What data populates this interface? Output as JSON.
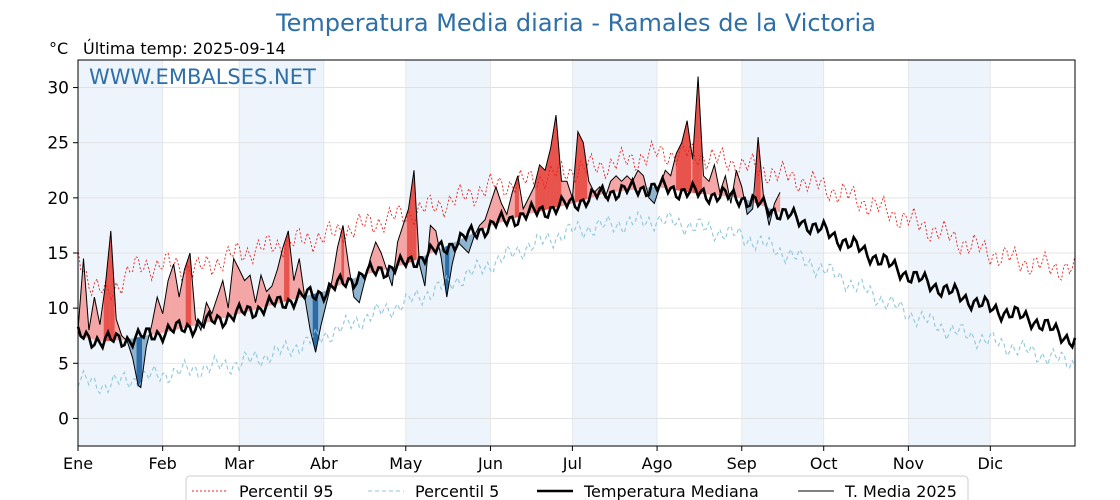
{
  "chart_data": {
    "type": "line",
    "title": "Temperatura Media diaria - Ramales de la Victoria",
    "unit_label": "°C",
    "last_temp_label": "Última temp: 2025-09-14",
    "watermark": "WWW.EMBALSES.NET",
    "ylim": [
      -2.5,
      32.5
    ],
    "yticks": [
      0,
      5,
      10,
      15,
      20,
      25,
      30
    ],
    "xlim": [
      1,
      366
    ],
    "months": [
      {
        "label": "Ene",
        "day": 1
      },
      {
        "label": "Feb",
        "day": 32
      },
      {
        "label": "Mar",
        "day": 60
      },
      {
        "label": "Abr",
        "day": 91
      },
      {
        "label": "May",
        "day": 121
      },
      {
        "label": "Jun",
        "day": 152
      },
      {
        "label": "Jul",
        "day": 182
      },
      {
        "label": "Ago",
        "day": 213
      },
      {
        "label": "Sep",
        "day": 244
      },
      {
        "label": "Oct",
        "day": 274
      },
      {
        "label": "Nov",
        "day": 305
      },
      {
        "label": "Dic",
        "day": 335
      }
    ],
    "grid": true,
    "legend_position": "bottom",
    "colors": {
      "p95": "#e8201c",
      "p5": "#8ec7db",
      "median": "#000000",
      "t2025": "#000000",
      "above_fill": "#f4a6a6",
      "above_strong": "#e8534c",
      "below_fill": "#8fb3cf",
      "below_strong": "#2a6ba8",
      "band": "#eef4fb",
      "title": "#2e6fa7"
    },
    "series": [
      {
        "name": "Percentil 95",
        "style": "dotted-red",
        "anchors": [
          [
            1,
            15.0
          ],
          [
            5,
            12.5
          ],
          [
            12,
            11.0
          ],
          [
            20,
            13.5
          ],
          [
            32,
            14.0
          ],
          [
            45,
            13.5
          ],
          [
            60,
            15.0
          ],
          [
            75,
            15.8
          ],
          [
            91,
            16.5
          ],
          [
            105,
            17.5
          ],
          [
            121,
            18.5
          ],
          [
            135,
            19.5
          ],
          [
            152,
            21.0
          ],
          [
            165,
            21.5
          ],
          [
            182,
            22.5
          ],
          [
            195,
            23.0
          ],
          [
            213,
            24.0
          ],
          [
            225,
            24.0
          ],
          [
            244,
            23.0
          ],
          [
            260,
            22.0
          ],
          [
            274,
            21.0
          ],
          [
            290,
            19.5
          ],
          [
            305,
            18.0
          ],
          [
            320,
            16.5
          ],
          [
            335,
            15.0
          ],
          [
            350,
            14.0
          ],
          [
            366,
            13.5
          ]
        ]
      },
      {
        "name": "Percentil 5",
        "style": "dashed-lightblue",
        "anchors": [
          [
            1,
            3.5
          ],
          [
            10,
            3.0
          ],
          [
            20,
            3.5
          ],
          [
            32,
            4.0
          ],
          [
            45,
            4.5
          ],
          [
            60,
            5.0
          ],
          [
            75,
            6.0
          ],
          [
            91,
            7.5
          ],
          [
            105,
            9.0
          ],
          [
            121,
            10.5
          ],
          [
            135,
            12.0
          ],
          [
            152,
            14.0
          ],
          [
            165,
            15.5
          ],
          [
            182,
            17.0
          ],
          [
            195,
            17.5
          ],
          [
            213,
            18.0
          ],
          [
            225,
            17.5
          ],
          [
            244,
            16.5
          ],
          [
            260,
            15.0
          ],
          [
            274,
            13.5
          ],
          [
            290,
            11.5
          ],
          [
            305,
            9.5
          ],
          [
            320,
            8.0
          ],
          [
            335,
            7.0
          ],
          [
            350,
            6.0
          ],
          [
            366,
            5.0
          ]
        ]
      },
      {
        "name": "Temperatura Mediana",
        "style": "thick-black",
        "anchors": [
          [
            1,
            7.5
          ],
          [
            10,
            7.0
          ],
          [
            20,
            7.2
          ],
          [
            32,
            7.8
          ],
          [
            45,
            8.5
          ],
          [
            60,
            9.5
          ],
          [
            75,
            10.5
          ],
          [
            91,
            11.5
          ],
          [
            105,
            13.0
          ],
          [
            121,
            14.0
          ],
          [
            135,
            15.5
          ],
          [
            152,
            17.5
          ],
          [
            165,
            18.5
          ],
          [
            182,
            19.5
          ],
          [
            195,
            20.5
          ],
          [
            213,
            21.0
          ],
          [
            225,
            20.5
          ],
          [
            244,
            20.0
          ],
          [
            260,
            18.5
          ],
          [
            274,
            17.0
          ],
          [
            290,
            15.0
          ],
          [
            305,
            13.0
          ],
          [
            320,
            11.5
          ],
          [
            335,
            10.0
          ],
          [
            350,
            9.0
          ],
          [
            366,
            7.0
          ]
        ]
      },
      {
        "name": "T. Media 2025",
        "style": "thin-black",
        "points": [
          [
            1,
            8.0
          ],
          [
            3,
            14.5
          ],
          [
            5,
            8.0
          ],
          [
            7,
            11.0
          ],
          [
            9,
            8.5
          ],
          [
            11,
            12.0
          ],
          [
            13,
            17.0
          ],
          [
            15,
            9.0
          ],
          [
            17,
            7.5
          ],
          [
            19,
            7.0
          ],
          [
            21,
            5.5
          ],
          [
            23,
            3.0
          ],
          [
            24,
            2.8
          ],
          [
            26,
            6.5
          ],
          [
            28,
            8.5
          ],
          [
            30,
            11.0
          ],
          [
            32,
            9.5
          ],
          [
            34,
            12.5
          ],
          [
            36,
            14.0
          ],
          [
            38,
            11.0
          ],
          [
            40,
            13.5
          ],
          [
            42,
            15.0
          ],
          [
            44,
            9.0
          ],
          [
            46,
            8.0
          ],
          [
            48,
            10.5
          ],
          [
            50,
            9.5
          ],
          [
            52,
            11.0
          ],
          [
            54,
            12.5
          ],
          [
            56,
            10.0
          ],
          [
            58,
            14.5
          ],
          [
            60,
            13.5
          ],
          [
            62,
            12.5
          ],
          [
            64,
            13.0
          ],
          [
            66,
            10.5
          ],
          [
            68,
            13.0
          ],
          [
            70,
            11.5
          ],
          [
            72,
            12.0
          ],
          [
            74,
            13.5
          ],
          [
            76,
            15.5
          ],
          [
            78,
            17.0
          ],
          [
            80,
            12.5
          ],
          [
            82,
            14.5
          ],
          [
            84,
            11.0
          ],
          [
            86,
            8.0
          ],
          [
            88,
            6.0
          ],
          [
            90,
            8.5
          ],
          [
            92,
            10.5
          ],
          [
            94,
            12.5
          ],
          [
            96,
            15.5
          ],
          [
            98,
            17.5
          ],
          [
            100,
            14.0
          ],
          [
            102,
            11.0
          ],
          [
            104,
            10.5
          ],
          [
            106,
            12.5
          ],
          [
            108,
            14.5
          ],
          [
            110,
            16.0
          ],
          [
            112,
            15.0
          ],
          [
            114,
            13.5
          ],
          [
            116,
            12.0
          ],
          [
            118,
            16.0
          ],
          [
            120,
            17.5
          ],
          [
            122,
            19.0
          ],
          [
            124,
            22.5
          ],
          [
            126,
            14.0
          ],
          [
            128,
            12.0
          ],
          [
            130,
            17.5
          ],
          [
            132,
            17.0
          ],
          [
            134,
            14.5
          ],
          [
            136,
            11.0
          ],
          [
            138,
            14.0
          ],
          [
            140,
            16.0
          ],
          [
            142,
            15.5
          ],
          [
            144,
            15.0
          ],
          [
            146,
            16.5
          ],
          [
            148,
            17.5
          ],
          [
            150,
            18.0
          ],
          [
            152,
            19.5
          ],
          [
            154,
            21.0
          ],
          [
            156,
            19.5
          ],
          [
            158,
            18.5
          ],
          [
            160,
            20.5
          ],
          [
            162,
            22.0
          ],
          [
            164,
            19.0
          ],
          [
            166,
            20.0
          ],
          [
            168,
            21.0
          ],
          [
            170,
            23.0
          ],
          [
            172,
            22.5
          ],
          [
            174,
            24.5
          ],
          [
            176,
            27.5
          ],
          [
            178,
            21.5
          ],
          [
            180,
            21.5
          ],
          [
            182,
            20.0
          ],
          [
            184,
            26.0
          ],
          [
            186,
            25.0
          ],
          [
            188,
            21.5
          ],
          [
            190,
            20.5
          ],
          [
            192,
            21.0
          ],
          [
            194,
            20.0
          ],
          [
            196,
            21.5
          ],
          [
            198,
            22.0
          ],
          [
            200,
            21.5
          ],
          [
            202,
            22.0
          ],
          [
            204,
            21.5
          ],
          [
            206,
            22.5
          ],
          [
            208,
            22.0
          ],
          [
            210,
            20.0
          ],
          [
            212,
            19.5
          ],
          [
            214,
            21.0
          ],
          [
            216,
            22.5
          ],
          [
            218,
            22.0
          ],
          [
            220,
            24.0
          ],
          [
            222,
            25.0
          ],
          [
            224,
            27.0
          ],
          [
            226,
            23.5
          ],
          [
            228,
            31.0
          ],
          [
            230,
            22.0
          ],
          [
            232,
            21.5
          ],
          [
            234,
            23.0
          ],
          [
            236,
            20.5
          ],
          [
            238,
            22.0
          ],
          [
            240,
            19.5
          ],
          [
            242,
            22.5
          ],
          [
            244,
            21.0
          ],
          [
            246,
            18.5
          ],
          [
            248,
            19.0
          ],
          [
            250,
            25.5
          ],
          [
            252,
            20.0
          ],
          [
            254,
            17.5
          ],
          [
            256,
            19.5
          ],
          [
            258,
            20.5
          ]
        ]
      }
    ],
    "legend": [
      {
        "key": "p95",
        "label": "Percentil 95"
      },
      {
        "key": "p5",
        "label": "Percentil 5"
      },
      {
        "key": "median",
        "label": "Temperatura Mediana"
      },
      {
        "key": "t2025",
        "label": "T. Media 2025"
      }
    ]
  }
}
